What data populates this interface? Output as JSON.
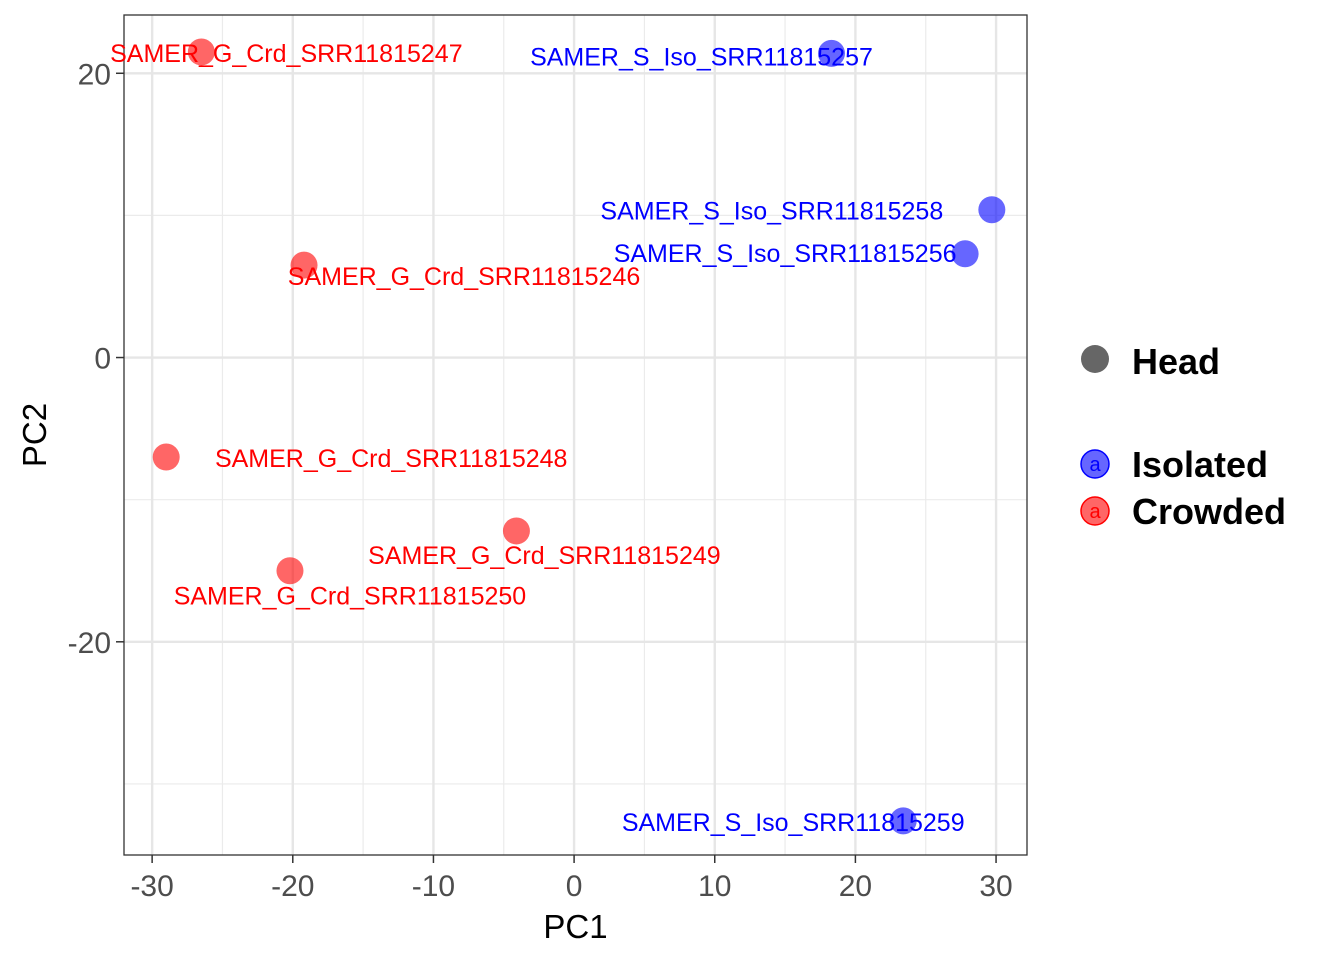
{
  "chart_data": {
    "type": "scatter",
    "xlabel": "PC1",
    "ylabel": "PC2",
    "xlim": [
      -32,
      32.2
    ],
    "ylim": [
      -35,
      24.1
    ],
    "x_ticks": [
      -30,
      -20,
      -10,
      0,
      10,
      20,
      30
    ],
    "x_tick_labels": [
      "-30",
      "-20",
      "-10",
      "0",
      "10",
      "20",
      "30"
    ],
    "y_ticks": [
      -20,
      0,
      20
    ],
    "y_tick_labels": [
      "-20",
      "0",
      "20"
    ],
    "x_minor_ticks": [
      -25,
      -15,
      -5,
      5,
      15,
      25
    ],
    "y_minor_ticks": [
      -30,
      -10,
      10
    ],
    "grid": true,
    "legend_position": "right",
    "legend": {
      "shape_title": "Head",
      "shape_color": "#666666",
      "key_letter": "a",
      "entries": [
        {
          "label": "Isolated",
          "color": "#0000ff"
        },
        {
          "label": "Crowded",
          "color": "#ff0000"
        }
      ]
    },
    "series": [
      {
        "name": "Isolated",
        "color": "#0000ff",
        "points": [
          {
            "label": "SAMER_S_Iso_SRR11815257",
            "x": 18.3,
            "y": 21.4
          },
          {
            "label": "SAMER_S_Iso_SRR11815258",
            "x": 29.7,
            "y": 10.4
          },
          {
            "label": "SAMER_S_Iso_SRR11815256",
            "x": 27.8,
            "y": 7.3
          },
          {
            "label": "SAMER_S_Iso_SRR11815259",
            "x": 23.4,
            "y": -32.6
          }
        ]
      },
      {
        "name": "Crowded",
        "color": "#ff0000",
        "points": [
          {
            "label": "SAMER_G_Crd_SRR11815247",
            "x": -26.5,
            "y": 21.5
          },
          {
            "label": "SAMER_G_Crd_SRR11815246",
            "x": -19.2,
            "y": 6.5
          },
          {
            "label": "SAMER_G_Crd_SRR11815248",
            "x": -29.0,
            "y": -7.0
          },
          {
            "label": "SAMER_G_Crd_SRR11815249",
            "x": -4.1,
            "y": -12.2
          },
          {
            "label": "SAMER_G_Crd_SRR11815250",
            "x": -20.2,
            "y": -15.0
          }
        ]
      }
    ]
  }
}
